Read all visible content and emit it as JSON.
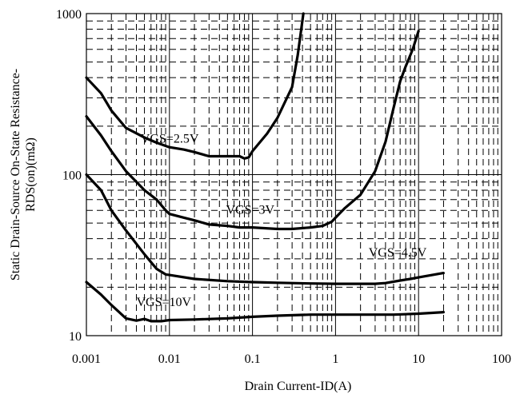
{
  "chart_data": {
    "type": "line",
    "title": "",
    "xlabel": "Drain Current-ID(A)",
    "ylabel_line1": "Static Drain-Source On-State Resistance-",
    "ylabel_line2": "RDS(on)(mΩ)",
    "xscale": "log",
    "yscale": "log",
    "xlim": [
      0.001,
      100
    ],
    "ylim": [
      10,
      1000
    ],
    "grid": true,
    "x_ticks": [
      {
        "value": 0.001,
        "label": "0.001"
      },
      {
        "value": 0.01,
        "label": "0.01"
      },
      {
        "value": 0.1,
        "label": "0.1"
      },
      {
        "value": 1,
        "label": "1"
      },
      {
        "value": 10,
        "label": "10"
      },
      {
        "value": 100,
        "label": "100"
      }
    ],
    "y_ticks": [
      {
        "value": 10,
        "label": "10"
      },
      {
        "value": 100,
        "label": "100"
      },
      {
        "value": 1000,
        "label": "1000"
      }
    ],
    "series": [
      {
        "name": "VGS=2.5V",
        "label_at": [
          0.0045,
          158
        ],
        "points": [
          [
            0.001,
            400
          ],
          [
            0.0015,
            320
          ],
          [
            0.002,
            250
          ],
          [
            0.003,
            195
          ],
          [
            0.005,
            170
          ],
          [
            0.007,
            158
          ],
          [
            0.01,
            148
          ],
          [
            0.015,
            143
          ],
          [
            0.02,
            138
          ],
          [
            0.03,
            130
          ],
          [
            0.05,
            130
          ],
          [
            0.07,
            130
          ],
          [
            0.08,
            126
          ],
          [
            0.09,
            128
          ],
          [
            0.1,
            140
          ],
          [
            0.15,
            180
          ],
          [
            0.2,
            225
          ],
          [
            0.3,
            350
          ],
          [
            0.35,
            550
          ],
          [
            0.38,
            750
          ],
          [
            0.41,
            1000
          ]
        ]
      },
      {
        "name": "VGS=3V",
        "label_at": [
          0.048,
          57
        ],
        "points": [
          [
            0.001,
            230
          ],
          [
            0.0015,
            175
          ],
          [
            0.002,
            140
          ],
          [
            0.003,
            105
          ],
          [
            0.005,
            80
          ],
          [
            0.007,
            70
          ],
          [
            0.009,
            60
          ],
          [
            0.01,
            57
          ],
          [
            0.015,
            54
          ],
          [
            0.02,
            52
          ],
          [
            0.03,
            49
          ],
          [
            0.05,
            48
          ],
          [
            0.07,
            47
          ],
          [
            0.1,
            47
          ],
          [
            0.2,
            46
          ],
          [
            0.3,
            46
          ],
          [
            0.5,
            47
          ],
          [
            0.7,
            48
          ],
          [
            0.9,
            51
          ],
          [
            1.0,
            54
          ],
          [
            1.3,
            62
          ],
          [
            2.0,
            75
          ],
          [
            3.0,
            105
          ],
          [
            4.0,
            160
          ],
          [
            5.0,
            260
          ],
          [
            6.0,
            380
          ],
          [
            7.0,
            470
          ],
          [
            8.5,
            600
          ],
          [
            10.0,
            780
          ]
        ]
      },
      {
        "name": "VGS=4.5V",
        "label_at": [
          2.5,
          31
        ],
        "points": [
          [
            0.001,
            100
          ],
          [
            0.0015,
            80
          ],
          [
            0.002,
            60
          ],
          [
            0.003,
            45
          ],
          [
            0.005,
            32
          ],
          [
            0.007,
            26
          ],
          [
            0.009,
            24
          ],
          [
            0.01,
            23.8
          ],
          [
            0.02,
            22.5
          ],
          [
            0.05,
            21.8
          ],
          [
            0.1,
            21.5
          ],
          [
            0.2,
            21.3
          ],
          [
            0.5,
            21.1
          ],
          [
            1,
            21
          ],
          [
            2,
            21
          ],
          [
            3,
            21
          ],
          [
            4,
            21.2
          ],
          [
            6,
            22
          ],
          [
            8,
            22.5
          ],
          [
            10,
            23
          ],
          [
            20,
            24.5
          ]
        ]
      },
      {
        "name": "VGS=10V",
        "label_at": [
          0.004,
          15.3
        ],
        "points": [
          [
            0.001,
            21.5
          ],
          [
            0.0015,
            18
          ],
          [
            0.002,
            15.5
          ],
          [
            0.003,
            12.8
          ],
          [
            0.004,
            12.4
          ],
          [
            0.005,
            12.7
          ],
          [
            0.006,
            12.3
          ],
          [
            0.008,
            12.3
          ],
          [
            0.01,
            12.5
          ],
          [
            0.02,
            12.6
          ],
          [
            0.05,
            12.8
          ],
          [
            0.1,
            13.1
          ],
          [
            0.2,
            13.3
          ],
          [
            0.5,
            13.5
          ],
          [
            1,
            13.5
          ],
          [
            2,
            13.5
          ],
          [
            5,
            13.5
          ],
          [
            10,
            13.7
          ],
          [
            20,
            14
          ]
        ]
      }
    ]
  }
}
